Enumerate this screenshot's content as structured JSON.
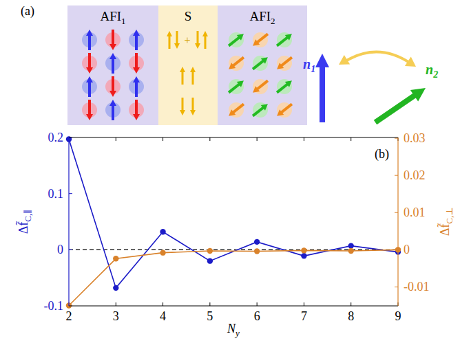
{
  "schematic": {
    "panel_label": "(a)",
    "regions": [
      {
        "main": "AFI",
        "sub": "1"
      },
      {
        "main": "S"
      },
      {
        "main": "AFI",
        "sub": "2"
      }
    ],
    "superposition_sign": "+",
    "vectors": [
      {
        "main": "n",
        "sub": "1",
        "color": "#3a3af0"
      },
      {
        "main": "n",
        "sub": "2",
        "color": "#22b522"
      }
    ]
  },
  "chart_data": {
    "type": "line",
    "panel_label": "(b)",
    "x_label": {
      "main": "N",
      "sub": "y"
    },
    "y_label": {
      "main": "Δf̃",
      "sub": "C,∥"
    },
    "y2_label": {
      "main": "Δf̃",
      "sub": "C,⊥"
    },
    "x": [
      2,
      3,
      4,
      5,
      6,
      7,
      8,
      9
    ],
    "xlim": [
      2,
      9
    ],
    "xticks": [
      2,
      3,
      4,
      5,
      6,
      7,
      8,
      9
    ],
    "ylim": [
      -0.1,
      0.2
    ],
    "yticks": [
      -0.1,
      0,
      0.1,
      0.2
    ],
    "y2lim": [
      -0.0151,
      0.0302
    ],
    "y2ticks": [
      -0.01,
      0,
      0.01,
      0.02,
      0.03
    ],
    "reference_lines": [
      {
        "y": 0,
        "line_style": "dashed",
        "color": "#000000"
      }
    ],
    "series": [
      {
        "color": "#1c1cc8",
        "marker": "circle",
        "values": [
          0.197,
          -0.068,
          0.032,
          -0.02,
          0.014,
          -0.011,
          0.007,
          -0.004
        ]
      },
      {
        "color": "#d9822b",
        "marker": "circle",
        "axis": "y2",
        "values": [
          -0.015,
          -0.0024,
          -0.0008,
          -0.0003,
          -0.0004,
          -0.0002,
          -0.0003,
          0.0
        ]
      }
    ]
  }
}
